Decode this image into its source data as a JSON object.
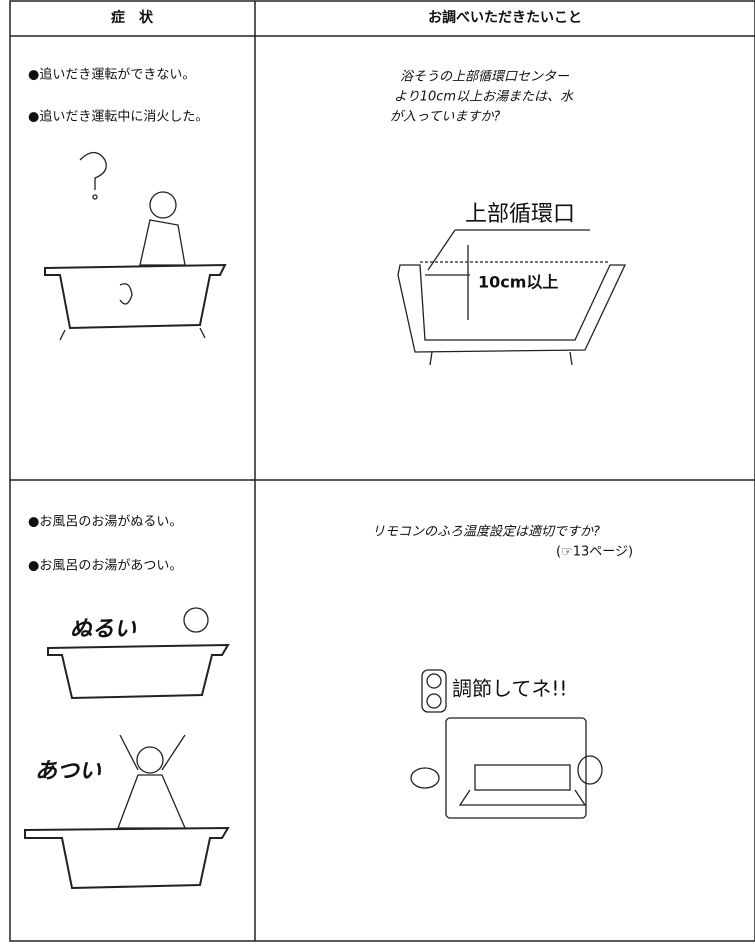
{
  "header": {
    "symptom": "症　状",
    "check": "お調べいただきたいこと"
  },
  "rows": [
    {
      "symptoms": [
        "●追いだき運転ができない。",
        "●追いだき運転中に消火した。"
      ],
      "check": [
        "浴そうの上部循環口センター",
        "より10cm以上お湯または、水",
        "が入っていますか?"
      ],
      "labels": [
        "上部循環口",
        "10cm以上"
      ]
    },
    {
      "symptoms": [
        "●お風呂のお湯がぬるい。",
        "●お風呂のお湯があつい。"
      ],
      "check": [
        "リモコンのふろ温度設定は適切ですか?",
        "(☞13ページ)"
      ],
      "labels": [
        "ぬるい",
        "あつい",
        "調節してネ!!"
      ]
    }
  ]
}
